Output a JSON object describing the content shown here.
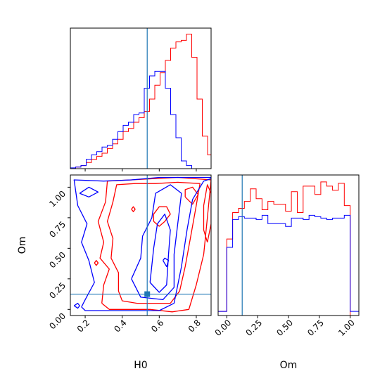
{
  "colors": {
    "series_a": "#ff0000",
    "series_b": "#0000ff",
    "truth": "#1f77b4",
    "frame": "#000000"
  },
  "chart_data": [
    {
      "type": "histogram",
      "panel": "H0 marginal",
      "xlabel": "",
      "xlim": [
        0.12,
        0.88
      ],
      "truth_x": 0.535,
      "bin_edges": [
        0.12,
        0.1485,
        0.177,
        0.2055,
        0.234,
        0.2625,
        0.291,
        0.3195,
        0.348,
        0.3765,
        0.405,
        0.4335,
        0.462,
        0.4905,
        0.519,
        0.5475,
        0.576,
        0.6045,
        0.633,
        0.6615,
        0.69,
        0.7185,
        0.747,
        0.7755,
        0.804,
        0.8325,
        0.861,
        0.88
      ],
      "series": [
        {
          "color": "#ff0000",
          "values": [
            0.0,
            0.01,
            0.02,
            0.04,
            0.06,
            0.08,
            0.1,
            0.13,
            0.16,
            0.19,
            0.24,
            0.26,
            0.3,
            0.33,
            0.37,
            0.45,
            0.54,
            0.62,
            0.7,
            0.78,
            0.82,
            0.83,
            0.87,
            0.72,
            0.45,
            0.21,
            0.09
          ]
        },
        {
          "color": "#0000ff",
          "values": [
            0.005,
            0.01,
            0.02,
            0.06,
            0.09,
            0.11,
            0.14,
            0.15,
            0.19,
            0.24,
            0.28,
            0.3,
            0.35,
            0.36,
            0.52,
            0.6,
            0.63,
            0.63,
            0.52,
            0.35,
            0.2,
            0.05,
            0.02,
            0.0,
            0.0,
            0.0,
            0.0
          ]
        }
      ]
    },
    {
      "type": "contour",
      "panel": "H0 vs Om",
      "xlabel": "H0",
      "ylabel": "Om",
      "xlim": [
        0.12,
        0.88
      ],
      "ylim": [
        -0.05,
        1.1
      ],
      "xticks": [
        "0.2",
        "0.4",
        "0.6",
        "0.8"
      ],
      "yticks": [
        "0.00",
        "0.25",
        "0.50",
        "0.75",
        "1.00"
      ],
      "truth": {
        "x": 0.535,
        "y": 0.125
      },
      "contours": [
        {
          "color": "#ff0000",
          "points": [
            [
              0.29,
              0.05
            ],
            [
              0.33,
              0.0
            ],
            [
              0.45,
              0.0
            ],
            [
              0.55,
              0.0
            ],
            [
              0.67,
              -0.02
            ],
            [
              0.76,
              0.0
            ],
            [
              0.8,
              0.2
            ],
            [
              0.84,
              0.45
            ],
            [
              0.86,
              0.75
            ],
            [
              0.88,
              1.06
            ],
            [
              0.7,
              1.08
            ],
            [
              0.57,
              1.07
            ],
            [
              0.45,
              1.06
            ],
            [
              0.32,
              1.05
            ],
            [
              0.31,
              0.88
            ],
            [
              0.27,
              0.72
            ],
            [
              0.3,
              0.55
            ],
            [
              0.28,
              0.42
            ],
            [
              0.33,
              0.33
            ],
            [
              0.3,
              0.2
            ],
            [
              0.29,
              0.05
            ]
          ]
        },
        {
          "color": "#ff0000",
          "points": [
            [
              0.38,
              0.15
            ],
            [
              0.4,
              0.07
            ],
            [
              0.48,
              0.05
            ],
            [
              0.57,
              0.05
            ],
            [
              0.66,
              0.05
            ],
            [
              0.71,
              0.15
            ],
            [
              0.74,
              0.35
            ],
            [
              0.77,
              0.6
            ],
            [
              0.8,
              0.85
            ],
            [
              0.82,
              1.03
            ],
            [
              0.7,
              1.04
            ],
            [
              0.58,
              1.03
            ],
            [
              0.47,
              1.03
            ],
            [
              0.37,
              1.02
            ],
            [
              0.35,
              0.88
            ],
            [
              0.32,
              0.72
            ],
            [
              0.35,
              0.58
            ],
            [
              0.34,
              0.42
            ],
            [
              0.38,
              0.3
            ],
            [
              0.38,
              0.15
            ]
          ]
        },
        {
          "color": "#ff0000",
          "points": [
            [
              0.57,
              0.72
            ],
            [
              0.6,
              0.68
            ],
            [
              0.63,
              0.72
            ],
            [
              0.66,
              0.78
            ],
            [
              0.64,
              0.84
            ],
            [
              0.6,
              0.84
            ],
            [
              0.57,
              0.78
            ],
            [
              0.57,
              0.72
            ]
          ]
        },
        {
          "color": "#ff0000",
          "points": [
            [
              0.86,
              0.55
            ],
            [
              0.88,
              0.7
            ],
            [
              0.88,
              0.95
            ],
            [
              0.86,
              1.02
            ],
            [
              0.84,
              0.85
            ],
            [
              0.84,
              0.65
            ],
            [
              0.86,
              0.55
            ]
          ]
        },
        {
          "color": "#ff0000",
          "points": [
            [
              0.74,
              0.92
            ],
            [
              0.78,
              0.86
            ],
            [
              0.81,
              0.94
            ],
            [
              0.78,
              1.0
            ],
            [
              0.74,
              0.98
            ],
            [
              0.74,
              0.92
            ]
          ]
        },
        {
          "color": "#ff0000",
          "points": [
            [
              0.45,
              0.82
            ],
            [
              0.46,
              0.8
            ],
            [
              0.47,
              0.82
            ],
            [
              0.46,
              0.84
            ],
            [
              0.45,
              0.82
            ]
          ]
        },
        {
          "color": "#ff0000",
          "points": [
            [
              0.25,
              0.38
            ],
            [
              0.26,
              0.36
            ],
            [
              0.27,
              0.38
            ],
            [
              0.26,
              0.4
            ],
            [
              0.25,
              0.38
            ]
          ]
        },
        {
          "color": "#0000ff",
          "points": [
            [
              0.18,
              0.02
            ],
            [
              0.2,
              -0.01
            ],
            [
              0.35,
              -0.01
            ],
            [
              0.5,
              -0.01
            ],
            [
              0.6,
              -0.01
            ],
            [
              0.68,
              0.05
            ],
            [
              0.72,
              0.35
            ],
            [
              0.75,
              0.65
            ],
            [
              0.78,
              0.9
            ],
            [
              0.84,
              1.05
            ],
            [
              0.88,
              1.07
            ],
            [
              0.88,
              1.08
            ],
            [
              0.6,
              1.08
            ],
            [
              0.45,
              1.06
            ],
            [
              0.3,
              1.05
            ],
            [
              0.14,
              1.06
            ],
            [
              0.16,
              0.85
            ],
            [
              0.21,
              0.7
            ],
            [
              0.18,
              0.55
            ],
            [
              0.22,
              0.4
            ],
            [
              0.25,
              0.22
            ],
            [
              0.2,
              0.08
            ],
            [
              0.18,
              0.02
            ]
          ]
        },
        {
          "color": "#0000ff",
          "points": [
            [
              0.45,
              0.25
            ],
            [
              0.5,
              0.1
            ],
            [
              0.62,
              0.08
            ],
            [
              0.68,
              0.18
            ],
            [
              0.68,
              0.45
            ],
            [
              0.7,
              0.7
            ],
            [
              0.72,
              0.95
            ],
            [
              0.66,
              1.02
            ],
            [
              0.58,
              0.95
            ],
            [
              0.56,
              0.75
            ],
            [
              0.51,
              0.6
            ],
            [
              0.5,
              0.42
            ],
            [
              0.45,
              0.25
            ]
          ]
        },
        {
          "color": "#0000ff",
          "points": [
            [
              0.55,
              0.22
            ],
            [
              0.6,
              0.14
            ],
            [
              0.64,
              0.2
            ],
            [
              0.65,
              0.45
            ],
            [
              0.66,
              0.65
            ],
            [
              0.63,
              0.78
            ],
            [
              0.59,
              0.7
            ],
            [
              0.57,
              0.5
            ],
            [
              0.55,
              0.22
            ]
          ]
        },
        {
          "color": "#0000ff",
          "points": [
            [
              0.62,
              0.4
            ],
            [
              0.64,
              0.35
            ],
            [
              0.65,
              0.4
            ],
            [
              0.63,
              0.42
            ],
            [
              0.62,
              0.4
            ]
          ]
        },
        {
          "color": "#0000ff",
          "points": [
            [
              0.14,
              0.03
            ],
            [
              0.16,
              0.01
            ],
            [
              0.17,
              0.03
            ],
            [
              0.16,
              0.05
            ],
            [
              0.14,
              0.03
            ]
          ]
        },
        {
          "color": "#0000ff",
          "points": [
            [
              0.17,
              0.95
            ],
            [
              0.22,
              0.92
            ],
            [
              0.27,
              0.96
            ],
            [
              0.22,
              1.0
            ],
            [
              0.17,
              0.95
            ]
          ]
        }
      ]
    },
    {
      "type": "histogram",
      "panel": "Om marginal",
      "xlabel": "Om",
      "xlim": [
        -0.07,
        1.07
      ],
      "xticks": [
        "0.00",
        "0.25",
        "0.50",
        "0.75",
        "1.00"
      ],
      "truth_x": 0.125,
      "bin_edges": [
        -0.07,
        0.0,
        0.0476,
        0.0952,
        0.1428,
        0.1904,
        0.238,
        0.2856,
        0.3332,
        0.3808,
        0.4284,
        0.476,
        0.5236,
        0.5712,
        0.6188,
        0.6664,
        0.714,
        0.7616,
        0.8092,
        0.8568,
        0.9044,
        0.952,
        1.0,
        1.07
      ],
      "series": [
        {
          "color": "#ff0000",
          "values": [
            0.03,
            0.55,
            0.74,
            0.77,
            0.82,
            0.91,
            0.84,
            0.76,
            0.82,
            0.8,
            0.8,
            0.75,
            0.89,
            0.74,
            0.93,
            0.93,
            0.87,
            0.96,
            0.93,
            0.9,
            0.95,
            0.79,
            0.0
          ]
        },
        {
          "color": "#0000ff",
          "values": [
            0.03,
            0.49,
            0.69,
            0.71,
            0.7,
            0.7,
            0.69,
            0.72,
            0.66,
            0.66,
            0.66,
            0.64,
            0.7,
            0.7,
            0.69,
            0.72,
            0.71,
            0.7,
            0.69,
            0.7,
            0.7,
            0.72,
            0.03
          ]
        }
      ]
    }
  ]
}
